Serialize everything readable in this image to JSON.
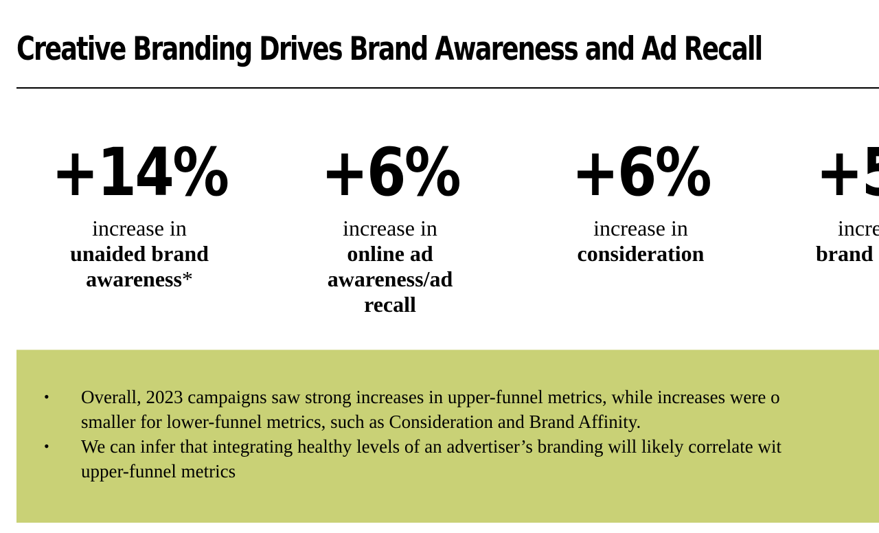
{
  "slide": {
    "title": "Creative Branding Drives Brand Awareness and Ad Recall"
  },
  "stats": [
    {
      "value": "+14%",
      "caption_plain": "increase in",
      "caption_bold": "unaided brand awareness",
      "footnote_mark": "*"
    },
    {
      "value": "+6%",
      "caption_plain": "increase in",
      "caption_bold": "online ad awareness/ad recall"
    },
    {
      "value": "+6%",
      "caption_plain": "increase in",
      "caption_bold": "consideration"
    },
    {
      "value": "+5",
      "caption_plain": "incre",
      "caption_bold": "brand"
    }
  ],
  "summary_panel": {
    "background_color": "#c9d176",
    "bullet_symbol": "•",
    "bullets": [
      {
        "line1": "Overall, 2023 campaigns saw strong increases in upper-funnel metrics, while increases were o",
        "line2": "smaller for lower-funnel metrics, such as Consideration and Brand Affinity."
      },
      {
        "line1": "We can infer that integrating healthy levels of an advertiser’s branding will likely correlate wit",
        "line2": "upper-funnel metrics"
      }
    ]
  }
}
